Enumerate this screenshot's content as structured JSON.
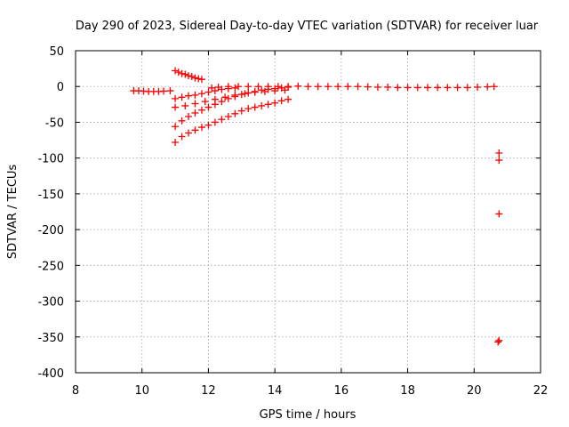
{
  "chart_data": {
    "type": "scatter",
    "title": "Day 290 of 2023, Sidereal Day-to-day VTEC variation (SDTVAR) for receiver luar",
    "xlabel": "GPS time / hours",
    "ylabel": "SDTVAR / TECUs",
    "xlim": [
      8,
      22
    ],
    "ylim": [
      -400,
      50
    ],
    "xticks": [
      8,
      10,
      12,
      14,
      16,
      18,
      20,
      22
    ],
    "yticks": [
      50,
      0,
      -50,
      -100,
      -150,
      -200,
      -250,
      -300,
      -350,
      -400
    ],
    "xtick_labels": [
      "8",
      "10",
      "12",
      "14",
      "16",
      "18",
      "20",
      "22"
    ],
    "ytick_labels": [
      "50",
      "0",
      "-50",
      "-100",
      "-150",
      "-200",
      "-250",
      "-300",
      "-350",
      "-400"
    ],
    "grid": true,
    "marker": "plus",
    "color": "#ff0000",
    "series": [
      {
        "points": [
          [
            9.75,
            -6
          ],
          [
            9.9,
            -6
          ],
          [
            10.05,
            -6.5
          ],
          [
            10.2,
            -7
          ],
          [
            10.35,
            -7
          ],
          [
            10.5,
            -7
          ],
          [
            10.65,
            -6.5
          ],
          [
            10.85,
            -6
          ],
          [
            11.0,
            22
          ],
          [
            11.1,
            20
          ],
          [
            11.2,
            18
          ],
          [
            11.3,
            17
          ],
          [
            11.4,
            15
          ],
          [
            11.5,
            14
          ],
          [
            11.6,
            12
          ],
          [
            11.7,
            11
          ],
          [
            11.8,
            10
          ],
          [
            11.0,
            -17
          ],
          [
            11.2,
            -15
          ],
          [
            11.4,
            -13
          ],
          [
            11.6,
            -12
          ],
          [
            11.8,
            -10
          ],
          [
            12.0,
            -8
          ],
          [
            12.2,
            -6
          ],
          [
            12.4,
            -4
          ],
          [
            12.6,
            -3
          ],
          [
            12.8,
            -2
          ],
          [
            11.0,
            -29
          ],
          [
            11.3,
            -27
          ],
          [
            11.6,
            -24
          ],
          [
            11.9,
            -21
          ],
          [
            12.2,
            -18
          ],
          [
            12.5,
            -15
          ],
          [
            12.8,
            -12
          ],
          [
            13.1,
            -10
          ],
          [
            13.4,
            -8
          ],
          [
            13.7,
            -7
          ],
          [
            14.0,
            -6
          ],
          [
            14.3,
            -5
          ],
          [
            11.0,
            -56
          ],
          [
            11.2,
            -48
          ],
          [
            11.4,
            -42
          ],
          [
            11.6,
            -37
          ],
          [
            11.8,
            -33
          ],
          [
            12.0,
            -29
          ],
          [
            12.2,
            -25
          ],
          [
            12.4,
            -21
          ],
          [
            12.6,
            -17
          ],
          [
            12.8,
            -14
          ],
          [
            13.0,
            -11
          ],
          [
            13.2,
            -9
          ],
          [
            13.4,
            -7
          ],
          [
            13.6,
            -5
          ],
          [
            13.8,
            -4
          ],
          [
            14.0,
            -3
          ],
          [
            14.2,
            -2
          ],
          [
            14.4,
            -1
          ],
          [
            11.0,
            -78
          ],
          [
            11.2,
            -70
          ],
          [
            11.4,
            -65
          ],
          [
            11.6,
            -61
          ],
          [
            11.8,
            -57
          ],
          [
            12.0,
            -54
          ],
          [
            12.2,
            -50
          ],
          [
            12.4,
            -46
          ],
          [
            12.6,
            -42
          ],
          [
            12.8,
            -38
          ],
          [
            13.0,
            -34
          ],
          [
            13.2,
            -31
          ],
          [
            13.4,
            -29
          ],
          [
            13.6,
            -27
          ],
          [
            13.8,
            -25
          ],
          [
            14.0,
            -23
          ],
          [
            14.2,
            -20
          ],
          [
            14.4,
            -18
          ],
          [
            12.1,
            -2
          ],
          [
            12.3,
            -1
          ],
          [
            12.6,
            0
          ],
          [
            12.9,
            0
          ],
          [
            13.2,
            0
          ],
          [
            13.5,
            0
          ],
          [
            13.8,
            0
          ],
          [
            14.1,
            0
          ],
          [
            14.4,
            0
          ],
          [
            14.7,
            0.5
          ],
          [
            15.0,
            0
          ],
          [
            15.3,
            0
          ],
          [
            15.6,
            0
          ],
          [
            15.9,
            0
          ],
          [
            16.2,
            0
          ],
          [
            16.5,
            0
          ],
          [
            16.8,
            -0.5
          ],
          [
            17.1,
            -1
          ],
          [
            17.4,
            -1
          ],
          [
            17.7,
            -1.5
          ],
          [
            18.0,
            -1.5
          ],
          [
            18.3,
            -1.5
          ],
          [
            18.6,
            -1.5
          ],
          [
            18.9,
            -1.5
          ],
          [
            19.2,
            -1.5
          ],
          [
            19.5,
            -1.5
          ],
          [
            19.8,
            -1.5
          ],
          [
            20.1,
            -1
          ],
          [
            20.4,
            -0.5
          ],
          [
            20.6,
            0
          ],
          [
            20.75,
            -93
          ],
          [
            20.75,
            -103
          ],
          [
            20.75,
            -178
          ],
          [
            20.75,
            -355
          ],
          [
            20.72,
            -357
          ]
        ]
      }
    ]
  }
}
